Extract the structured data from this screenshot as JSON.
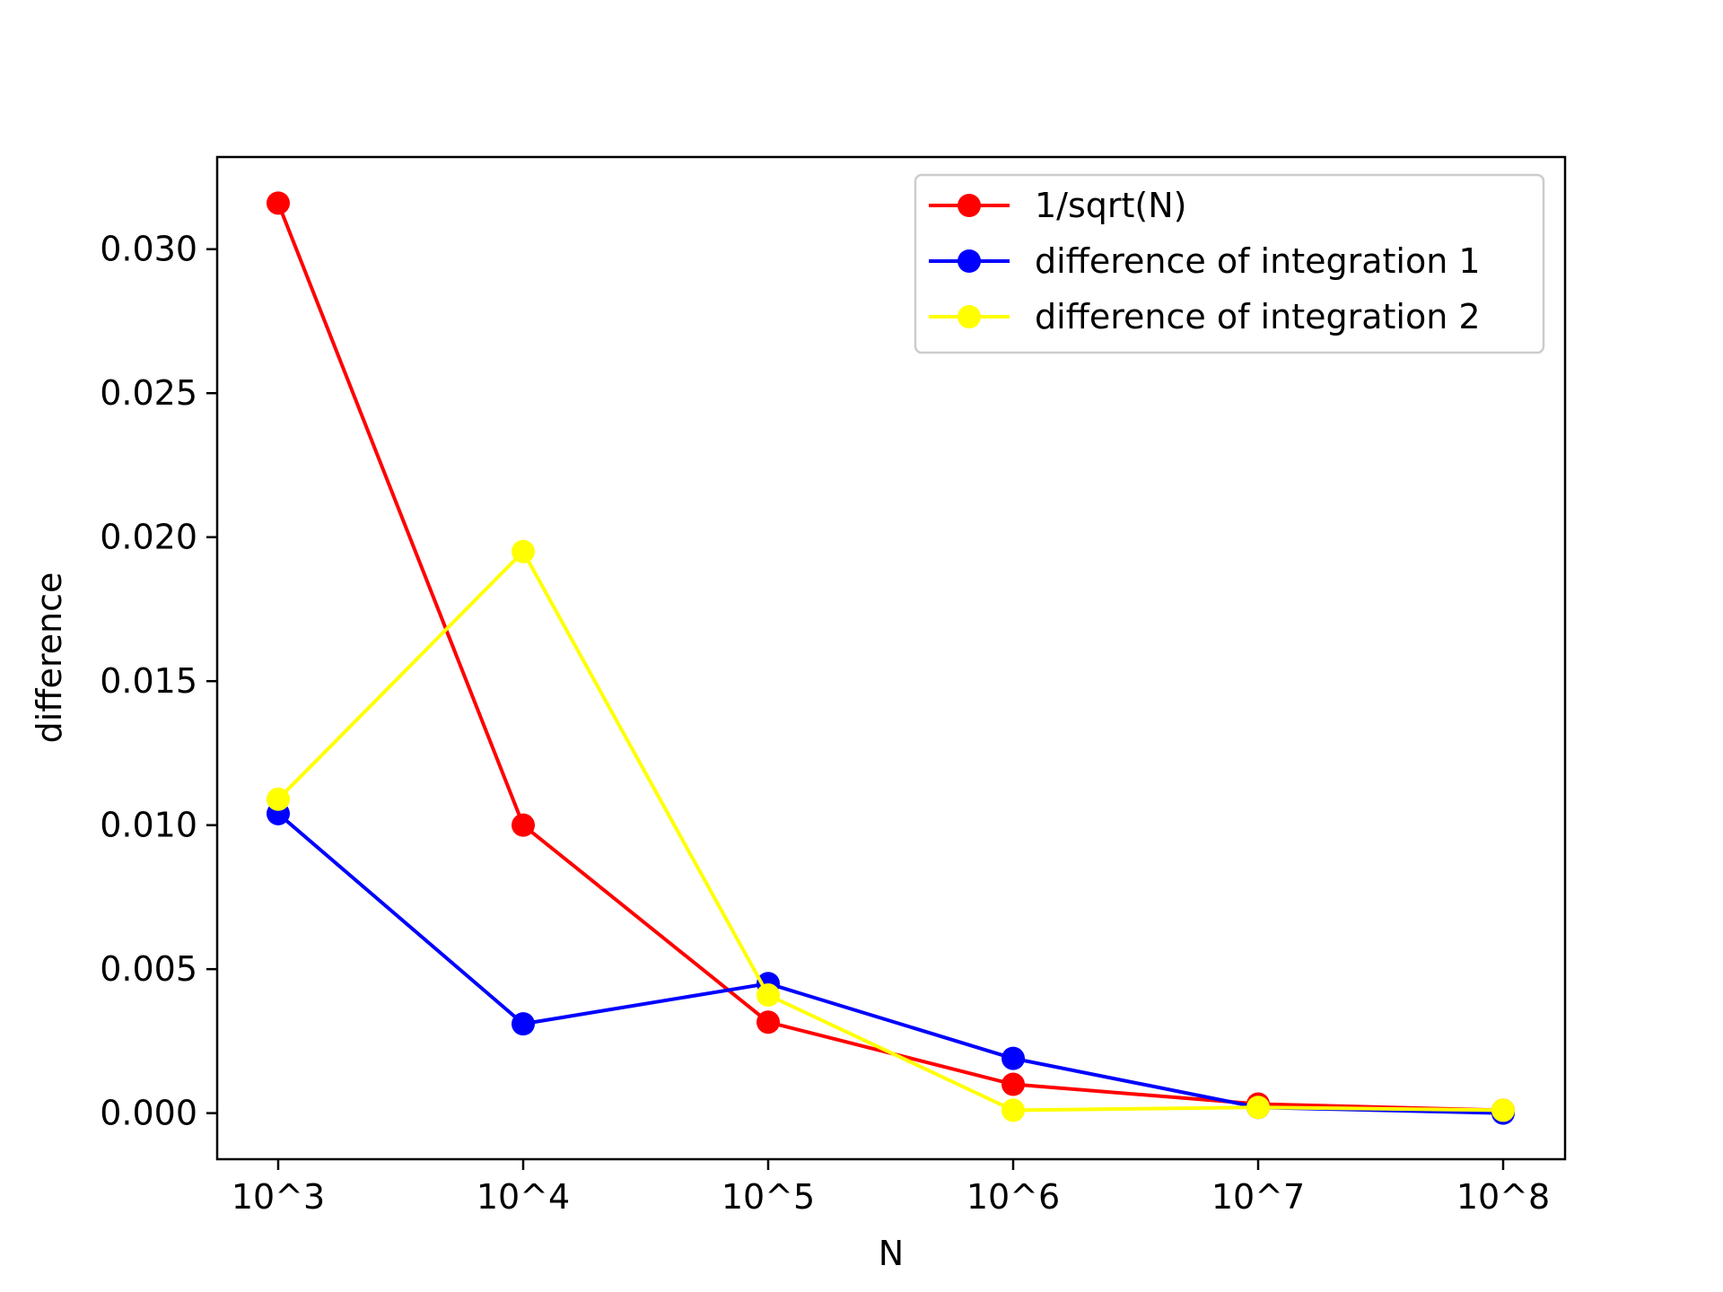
{
  "chart_data": {
    "type": "line",
    "categories": [
      "10^3",
      "10^4",
      "10^5",
      "10^6",
      "10^7",
      "10^8"
    ],
    "xlabel": "N",
    "ylabel": "difference",
    "ylim": [
      -0.0016,
      0.0332
    ],
    "yticks": [
      "0.000",
      "0.005",
      "0.010",
      "0.015",
      "0.020",
      "0.025",
      "0.030"
    ],
    "ytick_values": [
      0.0,
      0.005,
      0.01,
      0.015,
      0.02,
      0.025,
      0.03
    ],
    "grid": false,
    "legend_position": "top-right",
    "series": [
      {
        "name": "1/sqrt(N)",
        "color": "#ff0000",
        "values": [
          0.0316,
          0.01,
          0.00316,
          0.001,
          0.000316,
          0.0001
        ]
      },
      {
        "name": "difference of integration 1",
        "color": "#0000ff",
        "values": [
          0.0104,
          0.0031,
          0.0045,
          0.0019,
          0.0002,
          0.0
        ]
      },
      {
        "name": "difference of integration 2",
        "color": "#ffff00",
        "values": [
          0.0109,
          0.0195,
          0.0041,
          0.0001,
          0.0002,
          0.0001
        ]
      }
    ]
  }
}
